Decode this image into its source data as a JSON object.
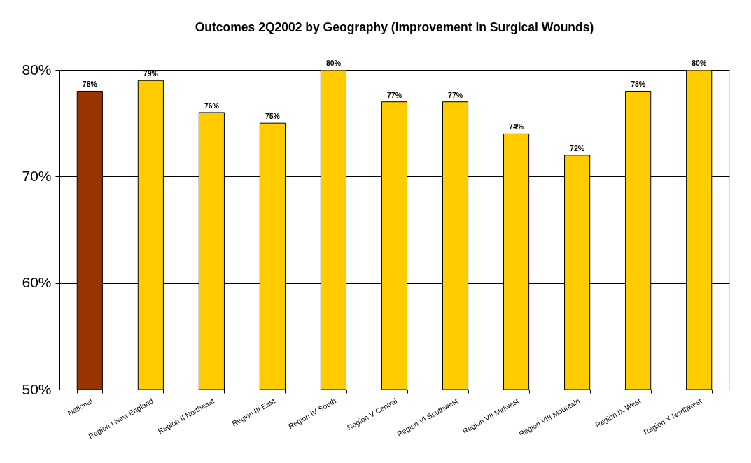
{
  "chart_data": {
    "type": "bar",
    "title": "Outcomes 2Q2002 by Geography (Improvement in Surgical Wounds)",
    "categories": [
      "National",
      "Region I   New England",
      "Region II Northeast",
      "Region III East",
      "Region IV South",
      "Region V Central",
      "Region VI Southwest",
      "Region VII Midwest",
      "Region VIII Mountain",
      "Region IX West",
      "Region X Northwest"
    ],
    "values": [
      78,
      79,
      76,
      75,
      80,
      77,
      77,
      74,
      72,
      78,
      80
    ],
    "value_labels": [
      "78%",
      "79%",
      "76%",
      "75%",
      "80%",
      "77%",
      "77%",
      "74%",
      "72%",
      "78%",
      "80%"
    ],
    "colors": [
      "#993300",
      "#ffcc00",
      "#ffcc00",
      "#ffcc00",
      "#ffcc00",
      "#ffcc00",
      "#ffcc00",
      "#ffcc00",
      "#ffcc00",
      "#ffcc00",
      "#ffcc00"
    ],
    "ylim": [
      50,
      80
    ],
    "yticks": [
      {
        "value": 50,
        "label": "50%"
      },
      {
        "value": 60,
        "label": "60%"
      },
      {
        "value": 70,
        "label": "70%"
      },
      {
        "value": 80,
        "label": "80%"
      }
    ],
    "grid": "y",
    "legend": false
  }
}
